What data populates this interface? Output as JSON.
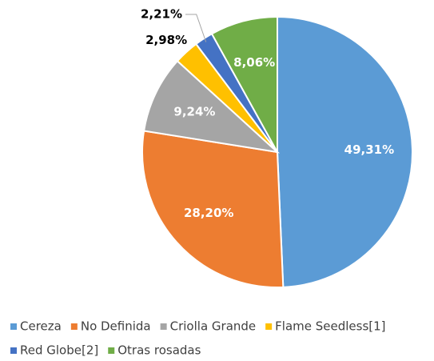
{
  "chart_data": {
    "type": "pie",
    "categories": [
      "Cereza",
      "No Definida",
      "Criolla Grande",
      "Flame Seedless[1]",
      "Red Globe[2]",
      "Otras rosadas"
    ],
    "values": [
      49.31,
      28.2,
      9.24,
      2.98,
      2.21,
      8.06
    ],
    "value_labels": [
      "49,31%",
      "28,20%",
      "9,24%",
      "2,98%",
      "2,21%",
      "8,06%"
    ],
    "colors": [
      "#5b9bd5",
      "#ed7d31",
      "#a5a5a5",
      "#ffc000",
      "#4472c4",
      "#70ad47"
    ],
    "legend": "bottom"
  }
}
